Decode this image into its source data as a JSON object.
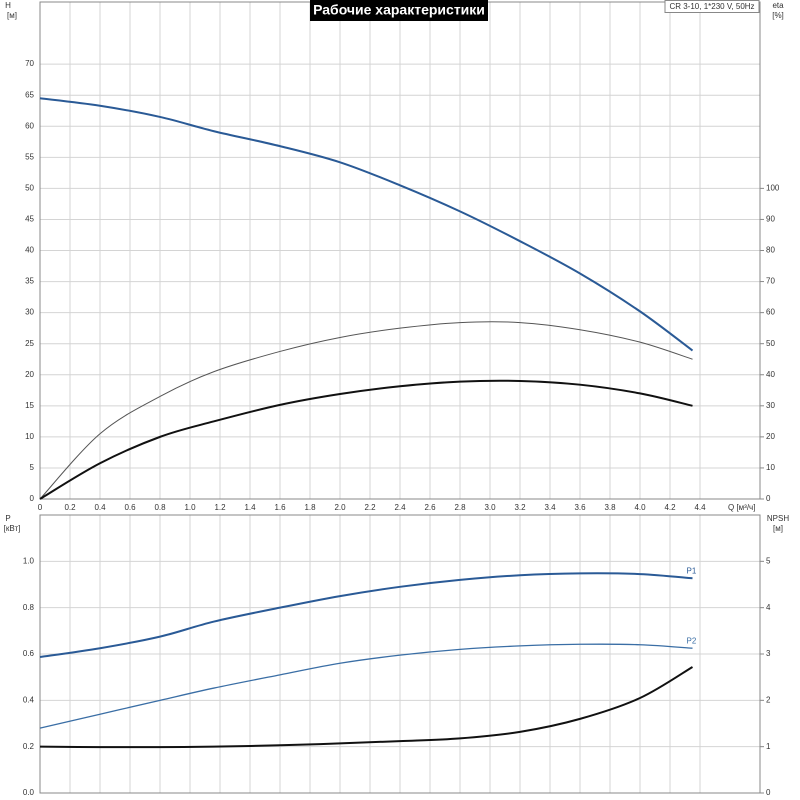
{
  "chart_data": [
    {
      "type": "line",
      "title": "Рабочие характеристики",
      "subtitle": "CR 3-10, 1*230 V, 50Hz",
      "xlabel": "Q [м³/ч]",
      "ylabel": [
        "H",
        "[м]"
      ],
      "y2label": [
        "eta",
        "[%]"
      ],
      "x": [
        0,
        0.4,
        0.8,
        1.16,
        1.6,
        2.0,
        2.4,
        2.8,
        3.2,
        3.6,
        4.0,
        4.35
      ],
      "xlim": [
        0,
        4.8
      ],
      "ylim": [
        0,
        80
      ],
      "y2lim": [
        0,
        160
      ],
      "xticks": [
        0,
        0.2,
        0.4,
        0.6,
        0.8,
        {
          "value": 1,
          "label": "1.0"
        },
        1.2,
        1.4,
        1.6,
        1.8,
        {
          "value": 2,
          "label": "2.0"
        },
        2.2,
        2.4,
        2.6,
        2.8,
        {
          "value": 3,
          "label": "3.0"
        },
        3.2,
        3.4,
        3.6,
        3.8,
        {
          "value": 4,
          "label": "4.0"
        },
        4.2,
        4.4
      ],
      "yticks": [
        0,
        5,
        10,
        15,
        20,
        25,
        30,
        35,
        40,
        45,
        50,
        55,
        60,
        65,
        70
      ],
      "y2ticks": [
        0,
        10,
        20,
        30,
        40,
        50,
        60,
        70,
        80,
        90,
        100
      ],
      "grid": true,
      "series": [
        {
          "color": "#2a5a96",
          "values": [
            64.5,
            63.3,
            61.5,
            59.2,
            56.8,
            54.2,
            50.5,
            46.3,
            41.5,
            36.3,
            30.2,
            23.9
          ]
        },
        {
          "color": "#555555",
          "axis": "y2",
          "values": [
            0,
            21,
            33,
            41,
            47.5,
            52,
            55,
            56.8,
            56.8,
            54.5,
            50.5,
            45
          ]
        },
        {
          "color": "#111111",
          "axis": "y2",
          "values": [
            0,
            11.5,
            20,
            25,
            30.3,
            33.8,
            36.3,
            37.8,
            38,
            36.8,
            34,
            30
          ]
        }
      ]
    },
    {
      "type": "line",
      "ylabel": [
        "P",
        "[кВт]"
      ],
      "y2label": [
        "NPSH",
        "[м]"
      ],
      "x": [
        0,
        0.4,
        0.8,
        1.16,
        1.6,
        2.0,
        2.4,
        2.8,
        3.2,
        3.6,
        4.0,
        4.35
      ],
      "xlim": [
        0,
        4.8
      ],
      "ylim": [
        0,
        1.2
      ],
      "y2lim": [
        0,
        6
      ],
      "yticks": [
        {
          "value": 0,
          "label": "0.0"
        },
        0.2,
        0.4,
        0.6,
        0.8,
        {
          "value": 1,
          "label": "1.0"
        }
      ],
      "y2ticks": [
        0,
        1,
        2,
        3,
        4,
        5
      ],
      "grid": true,
      "series": [
        {
          "name": "P1",
          "color": "#2a5a96",
          "values": [
            0.587,
            0.625,
            0.675,
            0.74,
            0.8,
            0.85,
            0.89,
            0.92,
            0.94,
            0.948,
            0.945,
            0.927
          ]
        },
        {
          "name": "P2",
          "color": "#3a6ea5",
          "values": [
            0.28,
            0.34,
            0.4,
            0.453,
            0.51,
            0.56,
            0.595,
            0.62,
            0.635,
            0.642,
            0.64,
            0.625
          ]
        },
        {
          "color": "#111111",
          "axis": "y2",
          "values": [
            1.0,
            0.99,
            0.99,
            1.0,
            1.03,
            1.07,
            1.12,
            1.18,
            1.32,
            1.6,
            2.05,
            2.72
          ]
        }
      ]
    }
  ]
}
